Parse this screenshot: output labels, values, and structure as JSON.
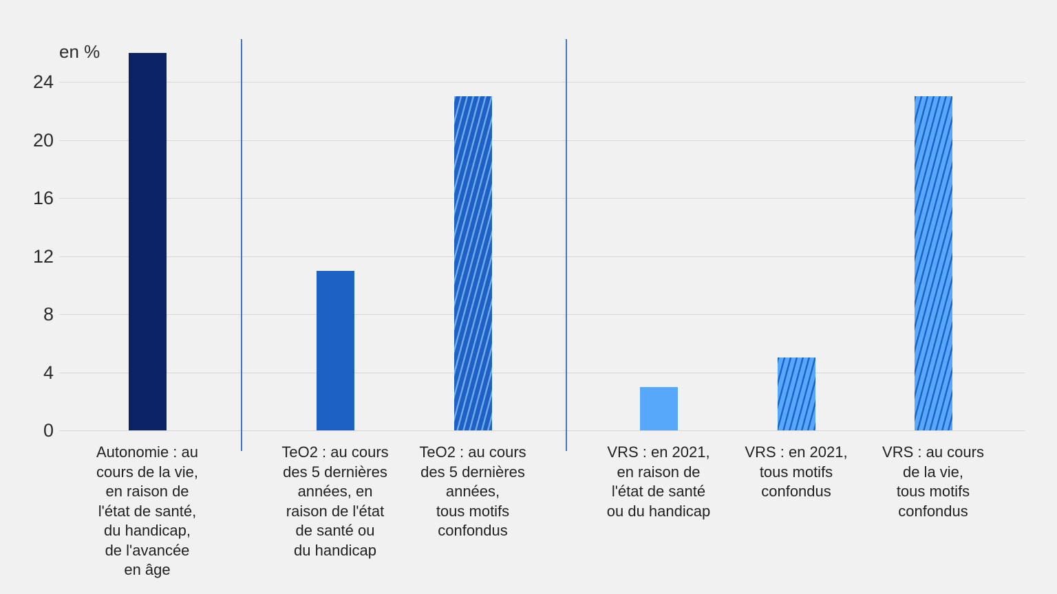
{
  "chart_data": {
    "type": "bar",
    "title": "",
    "unit": "en %",
    "xlabel": "",
    "ylabel": "en %",
    "categories": [
      "Autonomie : au\ncours de la vie,\nen raison de\nl'état de santé,\ndu handicap,\nde l'avancée\nen âge",
      "TeO2 : au cours\ndes 5 dernières\nannées, en\nraison de l'état\nde santé ou\ndu handicap",
      "TeO2 : au cours\ndes 5 dernières\nannées,\ntous motifs\nconfondus",
      "VRS : en 2021,\nen raison de\nl'état de santé\nou du handicap",
      "VRS : en 2021,\ntous motifs\nconfondus",
      "VRS : au cours\nde la vie,\ntous motifs\nconfondus"
    ],
    "values": [
      26,
      11,
      23,
      3,
      5,
      23
    ],
    "y_ticks": [
      0,
      4,
      8,
      12,
      16,
      20,
      24
    ],
    "ylim": [
      0,
      26.5
    ],
    "grid": true,
    "legend": "none",
    "bar_fills": [
      {
        "style": "solid",
        "color": "#0b2264"
      },
      {
        "style": "solid",
        "color": "#1d61c5"
      },
      {
        "style": "hatch",
        "color": "#1d61c5",
        "stripe": "#74a8e8"
      },
      {
        "style": "solid",
        "color": "#57a7fb"
      },
      {
        "style": "hatch",
        "color": "#57a7fb",
        "stripe": "#1d61c5"
      },
      {
        "style": "hatch",
        "color": "#57a7fb",
        "stripe": "#1d61c5"
      }
    ],
    "group_separators_after_bar": [
      1,
      3
    ],
    "colors": {
      "background": "#f1f1f1",
      "gridline": "#d6d6d6",
      "separator": "#4472c4",
      "text": "#2b2b2b"
    }
  }
}
